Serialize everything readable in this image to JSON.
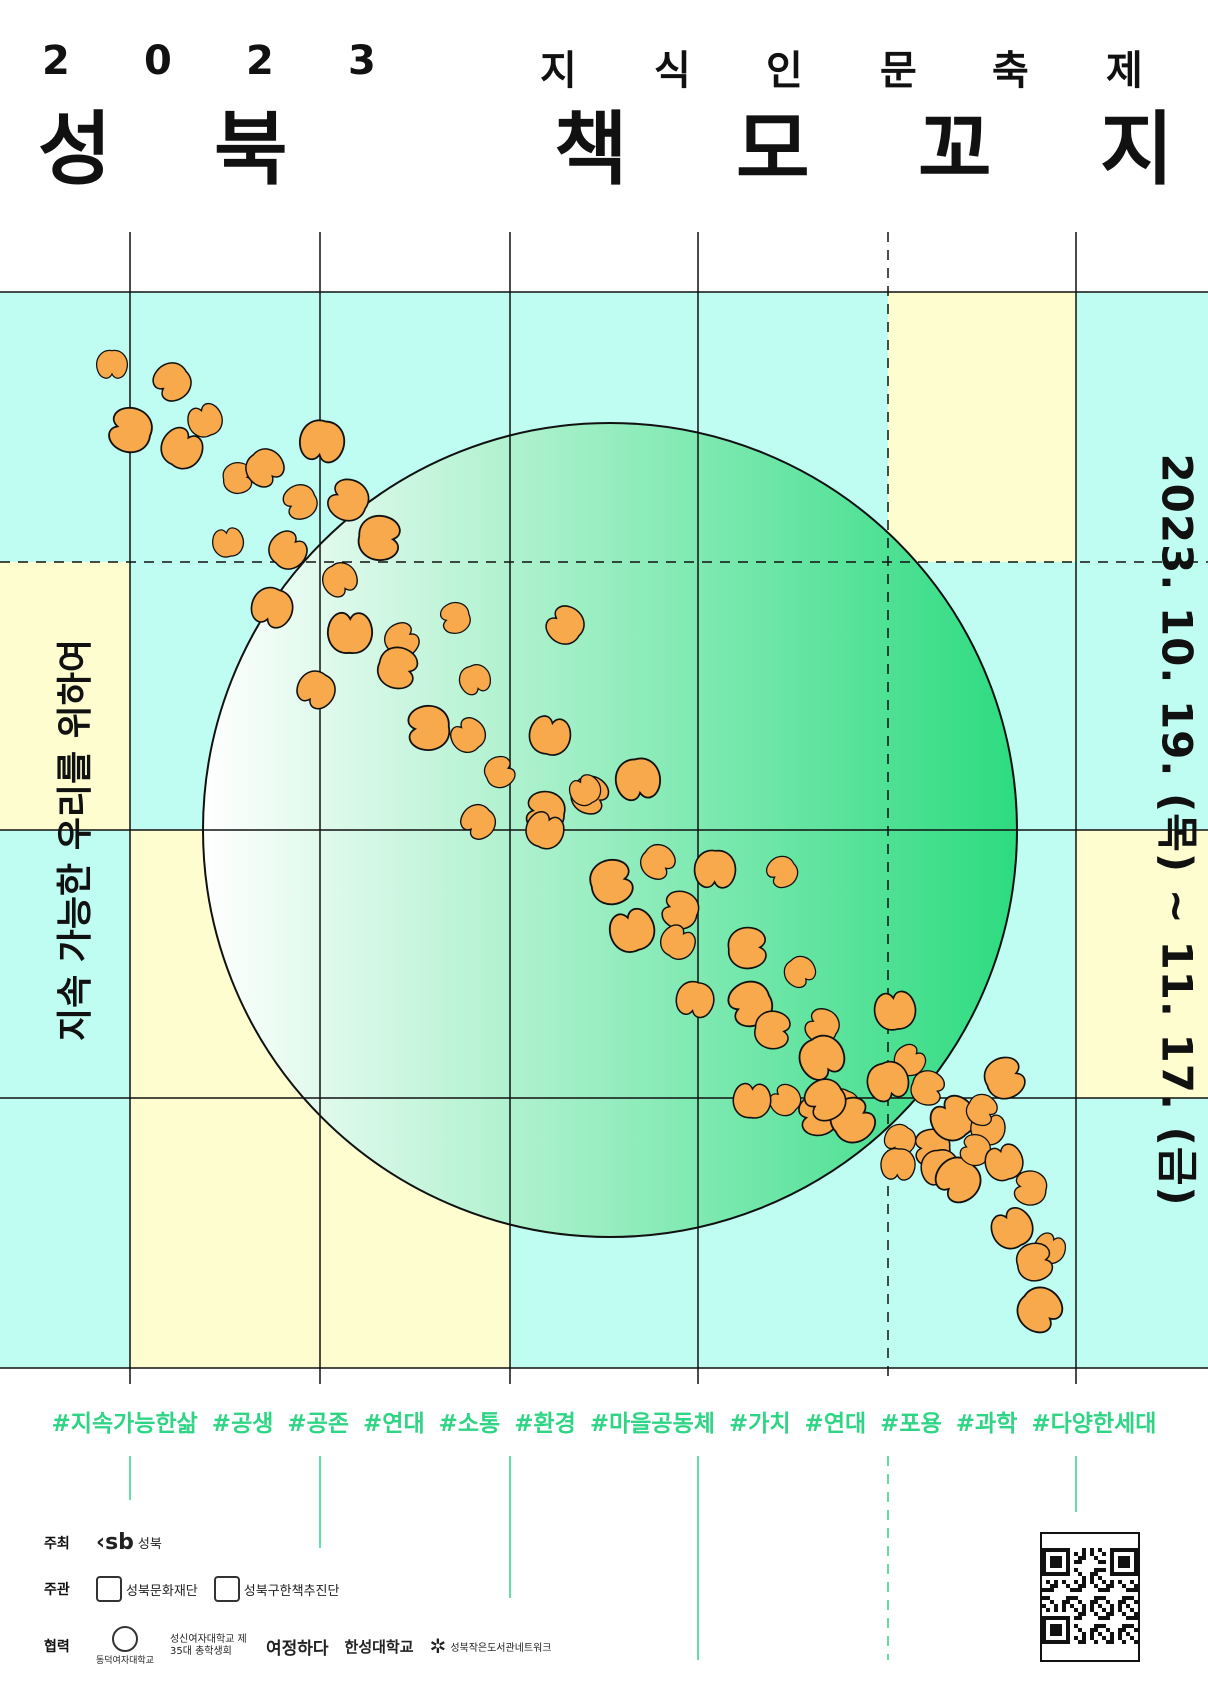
{
  "header": {
    "year_chars": [
      "2",
      "0",
      "2",
      "3"
    ],
    "subtitle_chars": [
      "지",
      "식",
      "인",
      "문",
      "축",
      "제"
    ],
    "title_chars": [
      "성",
      "북",
      "책",
      "모",
      "꼬",
      "지"
    ]
  },
  "side_left": "지속 가능한 우리를 위하여",
  "side_right": "2023. 10. 19. (목) ~ 11. 17. (금)",
  "hashtags": [
    "#지속가능한삶",
    "#공생",
    "#공존",
    "#연대",
    "#소통",
    "#환경",
    "#마을공동체",
    "#가치",
    "#연대",
    "#포용",
    "#과학",
    "#다양한세대"
  ],
  "credits": {
    "host_label": "주최",
    "host": "성북",
    "organizer_label": "주관",
    "organizers": [
      "성북문화재단",
      "성북구한책추진단"
    ],
    "partner_label": "협력",
    "partners": [
      "동덕여자대학교",
      "성신여자대학교 제35대 총학생회",
      "여정하다",
      "한성대학교",
      "성북작은도서관네트워크"
    ]
  },
  "colors": {
    "cyan": "#bffcf2",
    "yellow": "#fdfdcf",
    "green": "#2ddb80",
    "petal": "#f7a94b",
    "hashtag": "#2fd585"
  }
}
